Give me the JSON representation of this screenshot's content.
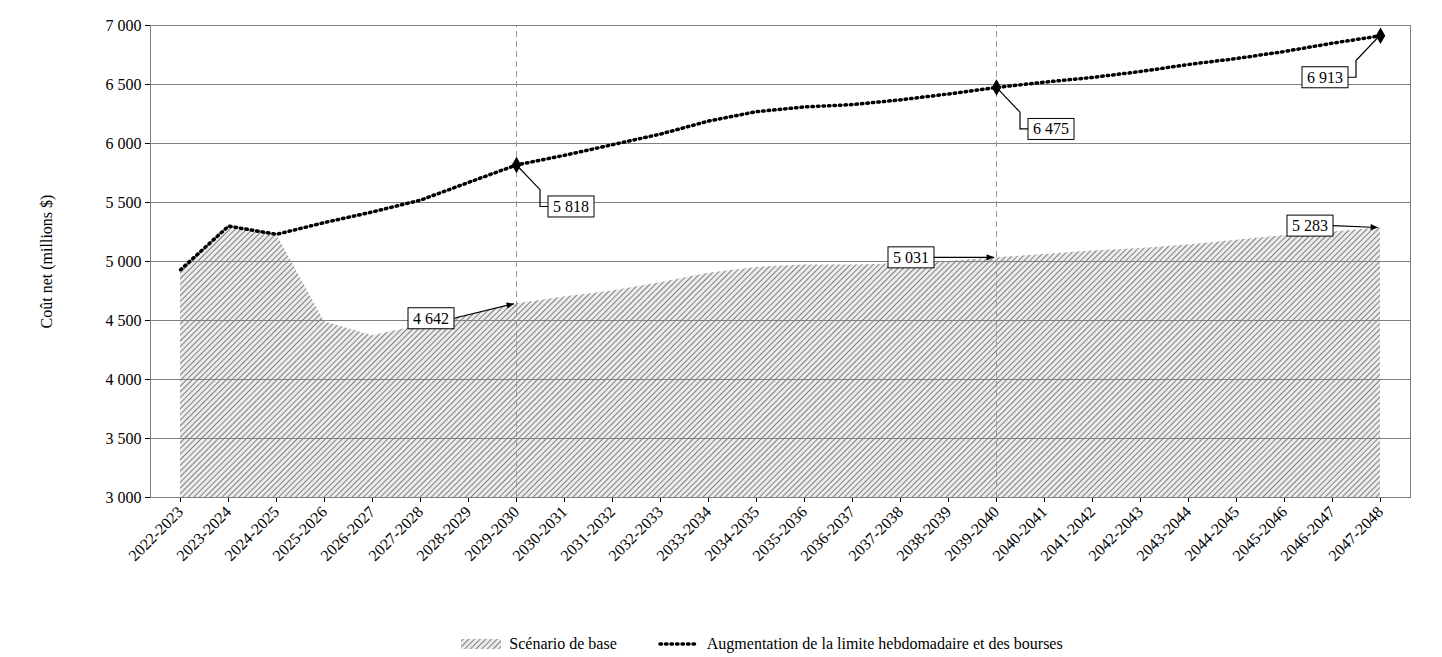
{
  "chart_data": {
    "type": "line",
    "y_label": "Coût net (millions $)",
    "categories": [
      "2022-2023",
      "2023-2024",
      "2024-2025",
      "2025-2026",
      "2026-2027",
      "2027-2028",
      "2028-2029",
      "2029-2030",
      "2030-2031",
      "2031-2032",
      "2032-2033",
      "2033-2034",
      "2034-2035",
      "2035-2036",
      "2036-2037",
      "2037-2038",
      "2038-2039",
      "2039-2040",
      "2040-2041",
      "2041-2042",
      "2042-2043",
      "2043-2044",
      "2044-2045",
      "2045-2046",
      "2046-2047",
      "2047-2048"
    ],
    "series": [
      {
        "name": "Scénario de base",
        "type": "area",
        "color": "#808080",
        "values": [
          4930,
          5300,
          5230,
          4490,
          4370,
          4460,
          4550,
          4642,
          4700,
          4750,
          4820,
          4900,
          4950,
          4970,
          4970,
          4980,
          5000,
          5031,
          5060,
          5090,
          5110,
          5140,
          5180,
          5220,
          5250,
          5283
        ],
        "value_labels": [
          null,
          null,
          null,
          null,
          null,
          null,
          null,
          "4 642",
          null,
          null,
          null,
          null,
          null,
          null,
          null,
          null,
          null,
          "5 031",
          null,
          null,
          null,
          null,
          null,
          null,
          null,
          "5 283"
        ]
      },
      {
        "name": "Augmentation de la limite hebdomadaire et des bourses",
        "type": "line",
        "color": "#000000",
        "line_style": "dotted",
        "marker": "diamond",
        "values": [
          4930,
          5300,
          5230,
          5330,
          5420,
          5520,
          5670,
          5818,
          5900,
          5990,
          6080,
          6190,
          6270,
          6310,
          6330,
          6370,
          6420,
          6475,
          6520,
          6560,
          6610,
          6670,
          6720,
          6780,
          6850,
          6913
        ],
        "value_labels": [
          null,
          null,
          null,
          null,
          null,
          null,
          null,
          "5 818",
          null,
          null,
          null,
          null,
          null,
          null,
          null,
          null,
          null,
          "6 475",
          null,
          null,
          null,
          null,
          null,
          null,
          null,
          "6 913"
        ]
      }
    ],
    "vlines": [
      "2029-2030",
      "2039-2040"
    ],
    "ylim": [
      3000,
      7000
    ],
    "yticks": [
      {
        "value": 3000,
        "label": "3 000"
      },
      {
        "value": 3500,
        "label": "3 500"
      },
      {
        "value": 4000,
        "label": "4 000"
      },
      {
        "value": 4500,
        "label": "4 500"
      },
      {
        "value": 5000,
        "label": "5 000"
      },
      {
        "value": 5500,
        "label": "5 500"
      },
      {
        "value": 6000,
        "label": "6 000"
      },
      {
        "value": 6500,
        "label": "6 500"
      },
      {
        "value": 7000,
        "label": "7 000"
      }
    ],
    "grid": true,
    "legend": "bottom"
  }
}
